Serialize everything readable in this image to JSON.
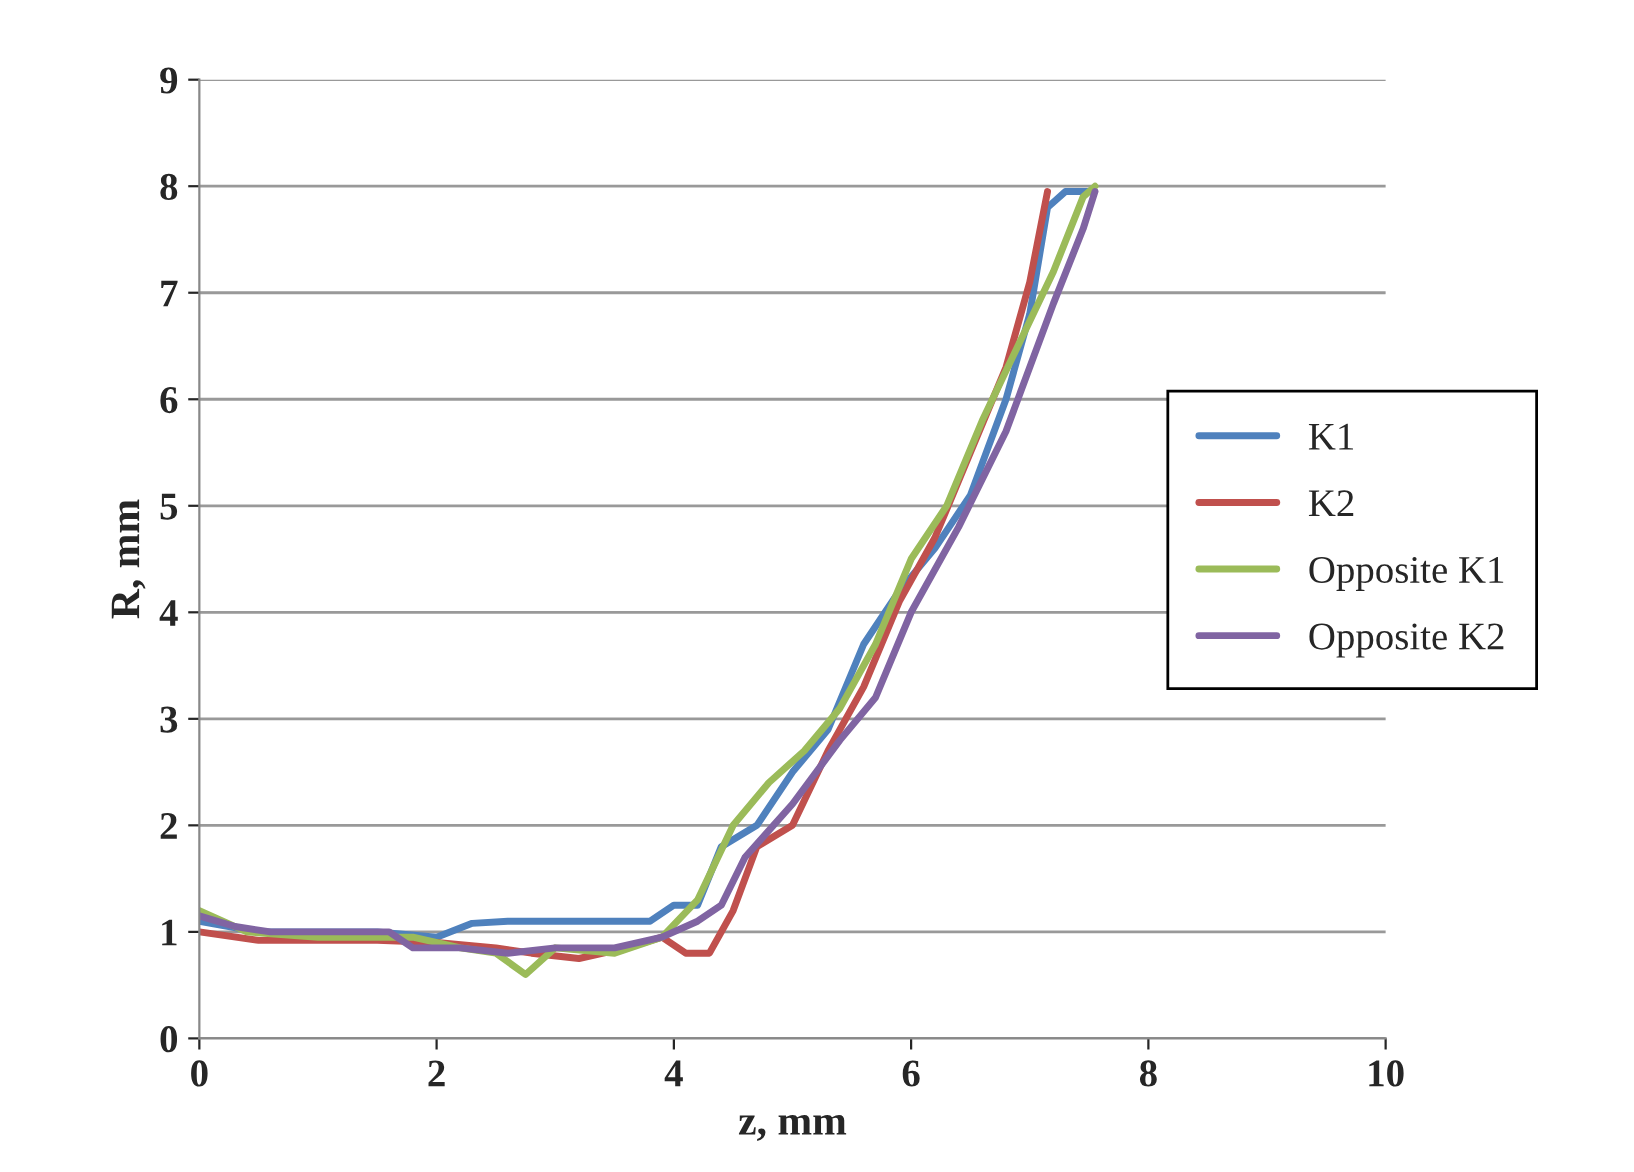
{
  "chart_data": {
    "type": "line",
    "xlabel": "z, mm",
    "ylabel": "R, mm",
    "xlim": [
      0,
      10
    ],
    "xticks": [
      0,
      2,
      4,
      6,
      8,
      10
    ],
    "ylim": [
      0,
      9
    ],
    "yticks": [
      0,
      1,
      2,
      3,
      4,
      5,
      6,
      7,
      8,
      9
    ],
    "grid": "y",
    "legend": "right",
    "marker": "none",
    "line_style": "solid",
    "series": [
      {
        "name": "K1",
        "color": "#4f81bd",
        "x": [
          0,
          0.5,
          1.5,
          2.0,
          2.3,
          2.6,
          3.0,
          3.8,
          4.0,
          4.2,
          4.4,
          4.7,
          5.0,
          5.3,
          5.6,
          5.9,
          6.2,
          6.5,
          6.8,
          7.0,
          7.15,
          7.3,
          7.5
        ],
        "values": [
          1.1,
          1.0,
          1.0,
          0.95,
          1.08,
          1.1,
          1.1,
          1.1,
          1.25,
          1.25,
          1.8,
          2.0,
          2.5,
          2.9,
          3.7,
          4.2,
          4.6,
          5.1,
          6.0,
          6.8,
          7.8,
          7.95,
          7.95
        ]
      },
      {
        "name": "K2",
        "color": "#c0504d",
        "x": [
          0,
          0.5,
          1.5,
          2.0,
          2.5,
          2.8,
          3.2,
          3.6,
          3.9,
          4.1,
          4.3,
          4.5,
          4.7,
          5.0,
          5.3,
          5.6,
          5.9,
          6.2,
          6.5,
          6.8,
          7.0,
          7.15
        ],
        "values": [
          1.0,
          0.92,
          0.92,
          0.9,
          0.85,
          0.8,
          0.75,
          0.85,
          0.95,
          0.8,
          0.8,
          1.2,
          1.8,
          2.0,
          2.7,
          3.3,
          4.1,
          4.7,
          5.5,
          6.3,
          7.1,
          7.95
        ]
      },
      {
        "name": "Opposite K1",
        "color": "#9bbb59",
        "x": [
          0,
          0.4,
          1.0,
          1.8,
          2.2,
          2.5,
          2.75,
          3.0,
          3.5,
          3.9,
          4.2,
          4.5,
          4.8,
          5.1,
          5.4,
          5.7,
          6.0,
          6.3,
          6.6,
          6.9,
          7.2,
          7.45,
          7.55
        ],
        "values": [
          1.2,
          1.0,
          0.95,
          0.95,
          0.85,
          0.8,
          0.6,
          0.85,
          0.8,
          0.95,
          1.3,
          2.0,
          2.4,
          2.7,
          3.1,
          3.7,
          4.5,
          5.0,
          5.8,
          6.5,
          7.2,
          7.9,
          8.0
        ]
      },
      {
        "name": "Opposite K2",
        "color": "#8064a2",
        "x": [
          0,
          0.3,
          0.6,
          1.6,
          1.8,
          2.2,
          2.6,
          3.0,
          3.5,
          3.9,
          4.2,
          4.4,
          4.6,
          5.0,
          5.4,
          5.7,
          6.0,
          6.4,
          6.8,
          7.2,
          7.45,
          7.55
        ],
        "values": [
          1.15,
          1.05,
          1.0,
          1.0,
          0.85,
          0.85,
          0.8,
          0.85,
          0.85,
          0.95,
          1.1,
          1.25,
          1.7,
          2.2,
          2.8,
          3.2,
          4.0,
          4.8,
          5.7,
          6.9,
          7.6,
          7.95
        ]
      }
    ]
  }
}
